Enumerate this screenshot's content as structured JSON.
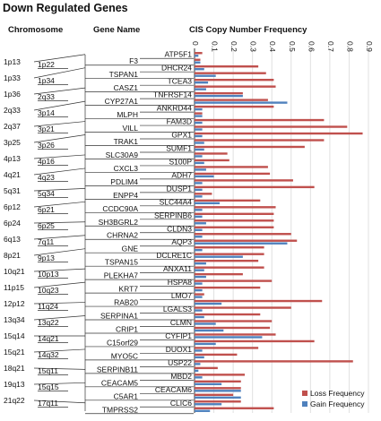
{
  "chart_data": {
    "type": "bar",
    "title": "Down Regulated Genes",
    "headers": {
      "chromosome": "Chromosome",
      "gene": "Gene Name",
      "frequency": "CIS Copy Number Frequency"
    },
    "axis": {
      "min": 0,
      "max": 0.9,
      "ticks": [
        "0",
        "0.1",
        "0.2",
        "0.3",
        "0.4",
        "0.5",
        "0.6",
        "0.7",
        "0.8",
        "0.9"
      ]
    },
    "legend": {
      "position": "bottom-right",
      "items": [
        {
          "label": "Loss Frequency",
          "color": "#c0504d"
        },
        {
          "label": "Gain Frequency",
          "color": "#4f81bd"
        }
      ]
    },
    "chromosomes": {
      "left": [
        "1p13",
        "1p33",
        "1p36",
        "2q33",
        "2q37",
        "3p25",
        "4p13",
        "4q21",
        "5q31",
        "6p12",
        "6p24",
        "6q13",
        "8p21",
        "10q21",
        "11p15",
        "12p12",
        "13q34",
        "15q14",
        "15q21",
        "18q21",
        "19q13",
        "21q22"
      ],
      "right": [
        "1p22",
        "1p34",
        "2q33",
        "3p14",
        "3p21",
        "3p26",
        "4p16",
        "4q23",
        "5q34",
        "6p21",
        "6p25",
        "7q11",
        "9p13",
        "10p13",
        "10q23",
        "11q24",
        "13q22",
        "14q21",
        "14q32",
        "15q11",
        "15q15",
        "17q11"
      ]
    },
    "genes": [
      "ATP5F1",
      "F3",
      "DHCR24",
      "TSPAN1",
      "TCEA3",
      "CASZ1",
      "TNFRSF14",
      "CYP27A1",
      "ANKRD44",
      "MLPH",
      "FAM3D",
      "VILL",
      "GPX1",
      "TRAK1",
      "SUMF1",
      "SLC30A9",
      "S100P",
      "CXCL3",
      "ADH7",
      "PDLIM4",
      "DUSP1",
      "ENPP4",
      "SLC44A4",
      "CCDC90A",
      "SERPINB6",
      "SH3BGRL2",
      "CLDN3",
      "CHRNA2",
      "AQP3",
      "GNE",
      "DCLRE1C",
      "TSPAN15",
      "ANXA11",
      "PLEKHA7",
      "HSPA8",
      "KRT7",
      "LMO7",
      "RAB20",
      "LGALS3",
      "SERPINA1",
      "CLMN",
      "CRIP1",
      "CYFIP1",
      "C15orf29",
      "DUOX1",
      "MYO5C",
      "USP22",
      "SERPINB11",
      "MBD2",
      "CEACAM5",
      "CEACAM6",
      "C5AR1",
      "CLIC6",
      "TMPRSS2"
    ],
    "series": [
      {
        "name": "Loss Frequency",
        "values": [
          0.04,
          0.03,
          0.33,
          0.37,
          0.41,
          0.42,
          0.25,
          0.38,
          0.41,
          0.04,
          0.67,
          0.79,
          0.87,
          0.67,
          0.57,
          0.17,
          0.18,
          0.38,
          0.39,
          0.51,
          0.62,
          0.09,
          0.34,
          0.42,
          0.41,
          0.41,
          0.41,
          0.5,
          0.53,
          0.36,
          0.36,
          0.33,
          0.36,
          0.25,
          0.4,
          0.34,
          0.05,
          0.66,
          0.5,
          0.34,
          0.4,
          0.39,
          0.42,
          0.62,
          0.33,
          0.22,
          0.82,
          0.12,
          0.26,
          0.24,
          0.24,
          0.2,
          0.24,
          0.41
        ]
      },
      {
        "name": "Gain Frequency",
        "values": [
          0.02,
          0.03,
          0.05,
          0.11,
          0.07,
          0.06,
          0.25,
          0.48,
          0.04,
          0.04,
          0.04,
          0.04,
          0.04,
          0.05,
          0.05,
          0.04,
          0.05,
          0.06,
          0.1,
          0.04,
          0.04,
          0.04,
          0.13,
          0.04,
          0.04,
          0.06,
          0.04,
          0.04,
          0.48,
          0.04,
          0.25,
          0.06,
          0.05,
          0.06,
          0.04,
          0.04,
          0.04,
          0.14,
          0.04,
          0.05,
          0.11,
          0.15,
          0.35,
          0.11,
          0.04,
          0.05,
          0.03,
          0.02,
          0.04,
          0.14,
          0.24,
          0.24,
          0.14,
          0.08
        ]
      }
    ]
  }
}
